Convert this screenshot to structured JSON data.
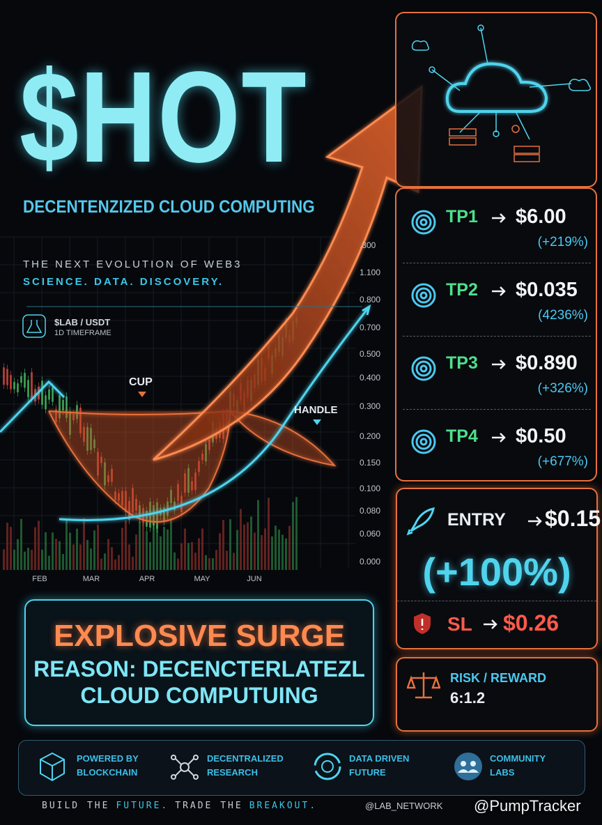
{
  "header": {
    "title": "$HOT",
    "subtitle": "DECENTENZIZED CLOUD COMPUTING",
    "tagline": "THE NEXT EVOLUTION OF WEB3",
    "motto": "SCIENCE. DATA. DISCOVERY."
  },
  "chart": {
    "pair": "$LAB / USDT",
    "timeframe": "1D TIMEFRAME",
    "y_labels": [
      ".300",
      "1.100",
      "0.800",
      "0.700",
      "0.500",
      "0.400",
      "0.300",
      "0.200",
      "0.150",
      "0.100",
      "0.080",
      "0.060",
      "0.000"
    ],
    "x_labels": [
      "FEB",
      "MAR",
      "APR",
      "MAY",
      "JUN"
    ],
    "annotations": [
      "CUP",
      "HANDLE"
    ]
  },
  "targets": [
    {
      "label": "TP1",
      "price": "$6.00",
      "change": "(+219%)"
    },
    {
      "label": "TP2",
      "price": "$0.035",
      "change": "(4236%)"
    },
    {
      "label": "TP3",
      "price": "$0.890",
      "change": "(+326%)"
    },
    {
      "label": "TP4",
      "price": "$0.50",
      "change": "(+677%)"
    }
  ],
  "entry": {
    "label": "ENTRY",
    "price": "$0.15",
    "change": "(+100%)"
  },
  "stop_loss": {
    "label": "SL",
    "price": "$0.26"
  },
  "risk_reward": {
    "label": "RISK / REWARD",
    "value": "6:1.2"
  },
  "reason": {
    "headline": "EXPLOSIVE SURGE",
    "lines": [
      "REASON: DECENCTERLATEZL",
      "CLOUD COMPUTUING"
    ]
  },
  "features": [
    {
      "lines": [
        "POWERED BY",
        "BLOCKCHAIN"
      ]
    },
    {
      "lines": [
        "DECENTRALIZED",
        "RESEARCH"
      ]
    },
    {
      "lines": [
        "DATA DRIVEN",
        "FUTURE"
      ]
    },
    {
      "lines": [
        "COMMUNITY",
        "LABS"
      ]
    }
  ],
  "footer": {
    "slogan": [
      "BUILD THE",
      "FUTURE.",
      "TRADE THE",
      "BREAKOUT."
    ],
    "handle": "@LAB_NETWORK",
    "watermark": "@PumpTracker"
  }
}
